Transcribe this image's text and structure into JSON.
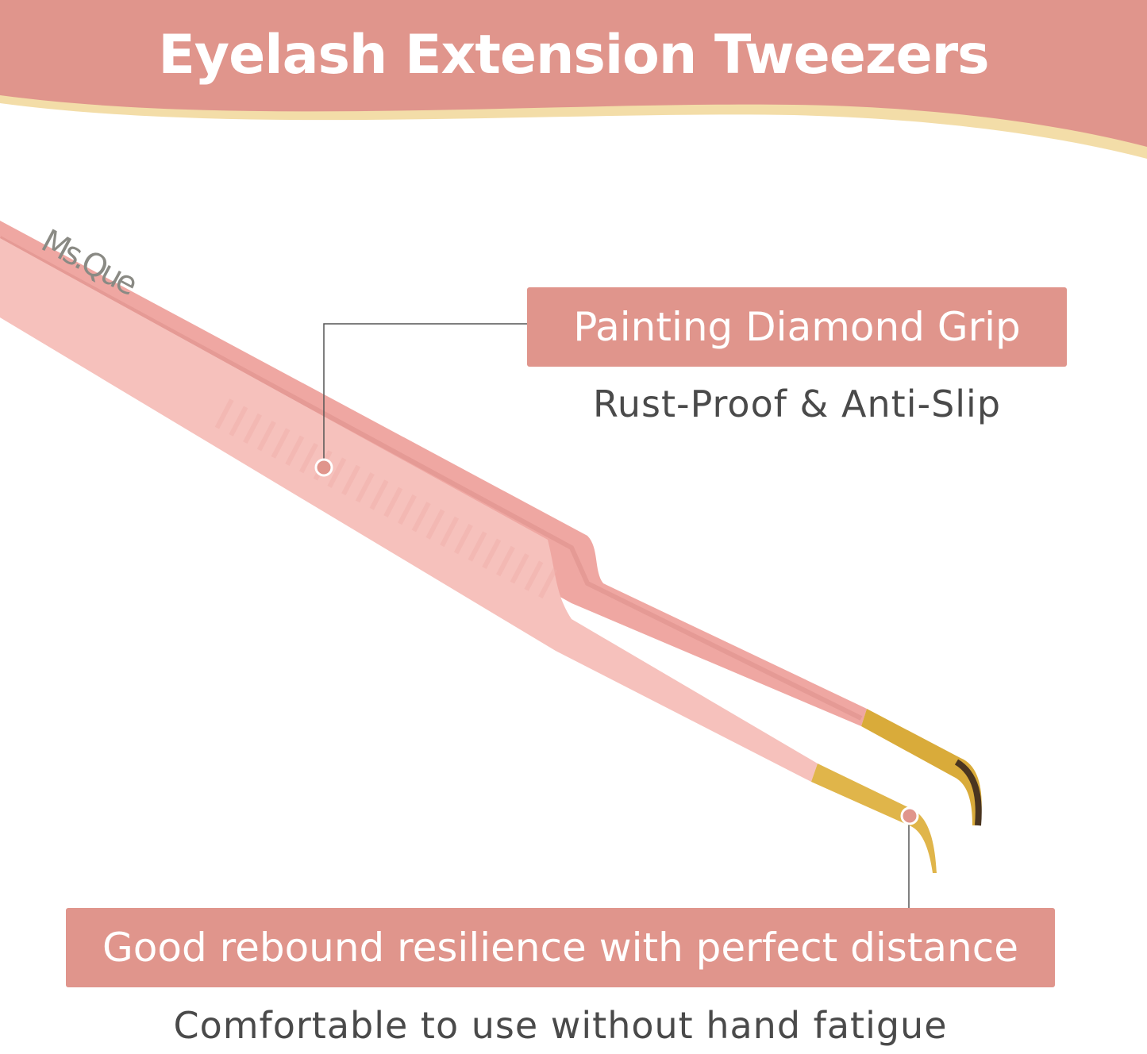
{
  "header": {
    "title": "Eyelash Extension Tweezers"
  },
  "callouts": [
    {
      "label": "Painting Diamond Grip",
      "subtitle": "Rust-Proof & Anti-Slip"
    },
    {
      "label": "Good rebound resilience with perfect distance",
      "subtitle": "Comfortable to use without hand fatigue"
    }
  ],
  "product": {
    "logo_text": "Ms.Que"
  },
  "colors": {
    "banner": "#e0958c",
    "banner_stripe": "#f3dda8",
    "tweezer_pink": "#f4b8b3",
    "tip_gold": "#d9ab3a",
    "label_box": "#e0958c"
  }
}
